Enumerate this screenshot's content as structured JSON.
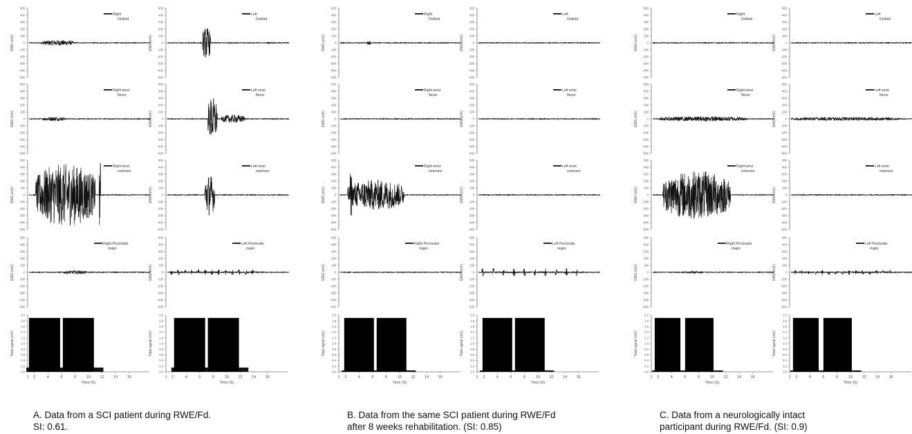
{
  "figure": {
    "captions": [
      {
        "line1": "A.     Data from a SCI patient during RWE/Fd.",
        "line2": "SI: 0.61."
      },
      {
        "line1": "B. Data from the same SCI patient during RWE/Fd",
        "line2": "after 8 weeks rehabilitation. (SI: 0.85)"
      },
      {
        "line1": "C. Data from a neurologically intact",
        "line2": "participant during RWE/Fd. (SI: 0.9)"
      }
    ]
  },
  "chart_data": {
    "type": "line",
    "description_of_grid": "3 conditions x 2 sides; each column has 4 EMG rows and 1 force-sensor row",
    "emg_ylabel": "EMG (mV)",
    "emg_yticks": [
      "500",
      "400",
      "300",
      "200",
      "100",
      "0",
      "-100",
      "-200",
      "-300",
      "-400",
      "-500"
    ],
    "emg_ylim": [
      -500,
      500
    ],
    "force_ylabel": "Total signal (mV)",
    "force_yticks": [
      "2.0",
      "1.8",
      "1.6",
      "1.4",
      "1.2",
      "1.0",
      "0.8",
      "0.6",
      "0.4",
      "0.2",
      "0.0"
    ],
    "force_ylim": [
      0,
      2.0
    ],
    "xlabel": "Time (S)",
    "xticks": [
      "1",
      "2",
      "4",
      "6",
      "8",
      "10",
      "12",
      "14",
      "16"
    ],
    "xlim": [
      1,
      19
    ],
    "muscles": [
      {
        "right": "Right Deltoid",
        "left": "Left Deltoid"
      },
      {
        "right": "Right wrist flexor",
        "left": "Left wrist flexor"
      },
      {
        "right": "Right wrist extensor",
        "left": "Left wrist extensor"
      },
      {
        "right": "Right Pectoralis major",
        "left": "Left Pectoralis major"
      }
    ],
    "panels": [
      {
        "condition": "A",
        "side": "right",
        "emg_burst_amplitude": [
          [
            {
              "t0": 2.8,
              "t1": 7.6,
              "amp": 40
            }
          ],
          [
            {
              "t0": 3.0,
              "t1": 6.4,
              "amp": 30
            }
          ],
          [
            {
              "t0": 2.0,
              "t1": 10.8,
              "amp": 450,
              "spike_t": 11.5,
              "spike_amp": 500
            }
          ],
          [
            {
              "t0": 6.0,
              "t1": 9.5,
              "amp": 25
            }
          ]
        ],
        "force_blocks": [
          [
            1.2,
            5.8,
            1.9
          ],
          [
            6.2,
            10.8,
            1.9
          ]
        ],
        "force_baseline": 0.15
      },
      {
        "condition": "A",
        "side": "left",
        "emg_burst_amplitude": [
          [
            {
              "t0": 6.2,
              "t1": 7.4,
              "amp": 230
            }
          ],
          [
            {
              "t0": 7.0,
              "t1": 8.4,
              "amp": 320
            },
            {
              "t0": 9.0,
              "t1": 12.5,
              "amp": 60
            }
          ],
          [
            {
              "t0": 6.5,
              "t1": 8.0,
              "amp": 300
            }
          ],
          [
            {
              "t0": 1.5,
              "t1": 14.5,
              "amp": 40,
              "pulsed": true
            }
          ]
        ],
        "force_blocks": [
          [
            2.2,
            6.8,
            1.9
          ],
          [
            7.2,
            11.8,
            1.9
          ]
        ],
        "force_baseline": 0.15
      },
      {
        "condition": "B",
        "side": "right",
        "emg_burst_amplitude": [
          [
            {
              "t0": 5.0,
              "t1": 5.6,
              "amp": 30
            }
          ],
          [],
          [
            {
              "t0": 2.1,
              "t1": 10.5,
              "amp": 220,
              "spike_t": 2.6,
              "spike_amp": 320
            }
          ],
          []
        ],
        "force_blocks": [
          [
            1.8,
            6.2,
            1.9
          ],
          [
            6.6,
            11.0,
            1.9
          ]
        ],
        "force_baseline": 0.05
      },
      {
        "condition": "B",
        "side": "left",
        "emg_burst_amplitude": [
          [],
          [],
          [],
          [
            {
              "t0": 1.5,
              "t1": 16.5,
              "amp": 60,
              "pulsed": true
            }
          ]
        ],
        "force_blocks": [
          [
            1.8,
            6.2,
            1.9
          ],
          [
            6.6,
            11.0,
            1.9
          ]
        ],
        "force_baseline": 0.05
      },
      {
        "condition": "C",
        "side": "right",
        "emg_burst_amplitude": [
          [],
          [
            {
              "t0": 2.0,
              "t1": 15.0,
              "amp": 35
            }
          ],
          [
            {
              "t0": 2.5,
              "t1": 12.5,
              "amp": 350
            }
          ],
          [
            {
              "t0": 5.5,
              "t1": 8.5,
              "amp": 15
            }
          ]
        ],
        "force_blocks": [
          [
            1.5,
            5.3,
            1.9
          ],
          [
            6.0,
            10.2,
            1.9
          ]
        ],
        "force_baseline": 0.05
      },
      {
        "condition": "C",
        "side": "left",
        "emg_burst_amplitude": [
          [],
          [
            {
              "t0": 1.0,
              "t1": 17.0,
              "amp": 25
            }
          ],
          [],
          [
            {
              "t0": 1.5,
              "t1": 16.5,
              "amp": 35,
              "pulsed": true
            }
          ]
        ],
        "force_blocks": [
          [
            1.5,
            5.3,
            1.9
          ],
          [
            6.0,
            10.2,
            1.9
          ]
        ],
        "force_baseline": 0.05
      }
    ],
    "legend_placement": "top-right of each EMG subplot",
    "grid": false
  }
}
